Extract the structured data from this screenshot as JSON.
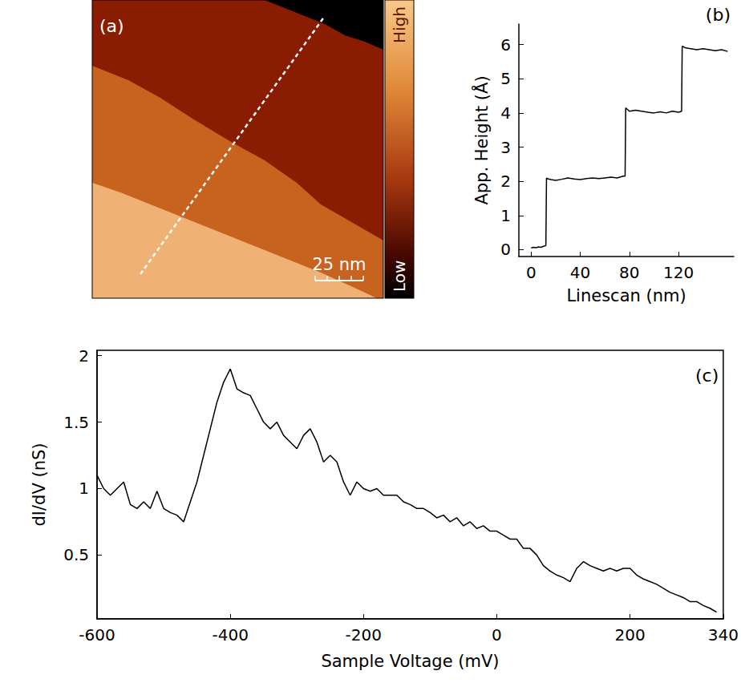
{
  "panel_a": {
    "label": "(a)",
    "colorbar": {
      "top": "High",
      "bottom": "Low"
    },
    "scale_bar": "25 nm"
  },
  "chart_data": [
    {
      "type": "line",
      "title": "(b)",
      "x_label": "Linescan (nm)",
      "y_label": "App. Height (Å)",
      "color": "#000000",
      "grid": false,
      "xlim": [
        -10,
        165
      ],
      "xticks": [
        0,
        40,
        80,
        120
      ],
      "ylim": [
        -0.2,
        6.6
      ],
      "yticks": [
        0,
        1,
        2,
        3,
        4,
        5,
        6
      ],
      "x": [
        0,
        2,
        4,
        6,
        8,
        10,
        12,
        12.5,
        13,
        16,
        20,
        25,
        30,
        35,
        40,
        45,
        50,
        55,
        60,
        65,
        70,
        75,
        76.5,
        77,
        80,
        85,
        90,
        95,
        100,
        105,
        110,
        115,
        120,
        122.5,
        123,
        126,
        130,
        135,
        140,
        145,
        150,
        155,
        160
      ],
      "values": [
        0.05,
        0.07,
        0.06,
        0.08,
        0.07,
        0.1,
        0.12,
        2.1,
        2.08,
        2.05,
        2.03,
        2.06,
        2.1,
        2.07,
        2.05,
        2.08,
        2.1,
        2.08,
        2.1,
        2.12,
        2.1,
        2.15,
        2.15,
        4.15,
        4.05,
        4.08,
        4.05,
        4.02,
        4.0,
        4.03,
        4.0,
        4.05,
        4.02,
        4.05,
        5.95,
        5.9,
        5.88,
        5.85,
        5.88,
        5.85,
        5.82,
        5.85,
        5.8
      ]
    },
    {
      "type": "line",
      "title": "(c)",
      "x_label": "Sample Voltage (mV)",
      "y_label": "dI/dV (nS)",
      "color": "#000000",
      "grid": false,
      "xlim": [
        -600,
        340
      ],
      "xticks": [
        -600,
        -400,
        -200,
        0,
        200
      ],
      "ylim": [
        0.02,
        2.04
      ],
      "yticks": [
        0.5,
        1,
        1.5,
        2
      ],
      "x": [
        -600,
        -590,
        -580,
        -570,
        -560,
        -550,
        -540,
        -530,
        -520,
        -510,
        -500,
        -490,
        -480,
        -470,
        -460,
        -450,
        -440,
        -430,
        -420,
        -410,
        -400,
        -390,
        -380,
        -370,
        -360,
        -350,
        -340,
        -330,
        -320,
        -310,
        -300,
        -290,
        -280,
        -270,
        -260,
        -250,
        -240,
        -230,
        -220,
        -210,
        -200,
        -190,
        -180,
        -170,
        -160,
        -150,
        -140,
        -130,
        -120,
        -110,
        -100,
        -90,
        -80,
        -70,
        -60,
        -50,
        -40,
        -30,
        -20,
        -10,
        0,
        10,
        20,
        30,
        40,
        50,
        60,
        70,
        80,
        90,
        100,
        110,
        120,
        130,
        140,
        150,
        160,
        170,
        180,
        190,
        200,
        210,
        220,
        230,
        240,
        250,
        260,
        270,
        280,
        290,
        300,
        310,
        320,
        330
      ],
      "values": [
        1.1,
        1.0,
        0.95,
        1.0,
        1.05,
        0.88,
        0.85,
        0.9,
        0.85,
        0.98,
        0.85,
        0.82,
        0.8,
        0.75,
        0.9,
        1.05,
        1.25,
        1.45,
        1.65,
        1.8,
        1.9,
        1.75,
        1.72,
        1.7,
        1.6,
        1.5,
        1.45,
        1.5,
        1.4,
        1.35,
        1.3,
        1.4,
        1.45,
        1.35,
        1.2,
        1.25,
        1.2,
        1.05,
        0.95,
        1.05,
        1.0,
        0.98,
        1.0,
        0.95,
        0.95,
        0.95,
        0.9,
        0.88,
        0.85,
        0.85,
        0.82,
        0.78,
        0.8,
        0.75,
        0.78,
        0.72,
        0.75,
        0.7,
        0.72,
        0.68,
        0.68,
        0.65,
        0.62,
        0.62,
        0.55,
        0.55,
        0.5,
        0.42,
        0.38,
        0.35,
        0.33,
        0.3,
        0.4,
        0.45,
        0.42,
        0.4,
        0.38,
        0.4,
        0.38,
        0.4,
        0.4,
        0.35,
        0.32,
        0.3,
        0.28,
        0.25,
        0.22,
        0.2,
        0.18,
        0.15,
        0.15,
        0.12,
        0.1,
        0.07
      ]
    }
  ]
}
